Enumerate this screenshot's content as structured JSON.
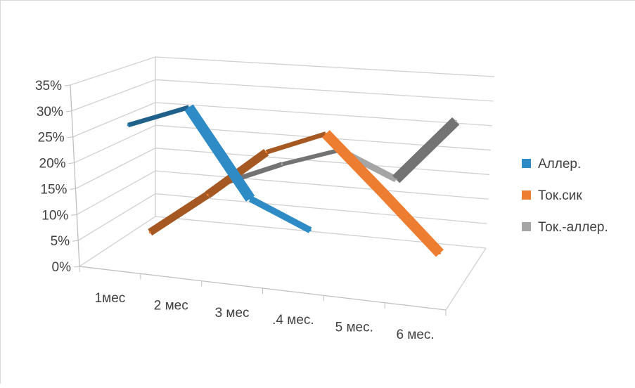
{
  "chart_data": {
    "type": "line",
    "style": "3d",
    "title": "",
    "xlabel": "",
    "ylabel": "",
    "ylim": [
      0,
      35
    ],
    "yticks": [
      "0%",
      "5%",
      "10%",
      "15%",
      "20%",
      "25%",
      "30%",
      "35%"
    ],
    "categories": [
      "1мес",
      "2 мес",
      "3 мес",
      ".4 мес.",
      "5 мес.",
      "6 мес."
    ],
    "grid": true,
    "legend": "right",
    "series": [
      {
        "name": "Аллер.",
        "color": "#2e8bc6",
        "values": [
          26,
          31,
          14,
          9,
          null,
          null
        ]
      },
      {
        "name": "Ток.сик",
        "color": "#ed7d31",
        "values": [
          2,
          11,
          21,
          26,
          15,
          4
        ]
      },
      {
        "name": "Ток.-аллер.",
        "color": "#a5a5a5",
        "values": [
          null,
          11,
          16,
          20,
          15,
          28
        ]
      }
    ]
  }
}
